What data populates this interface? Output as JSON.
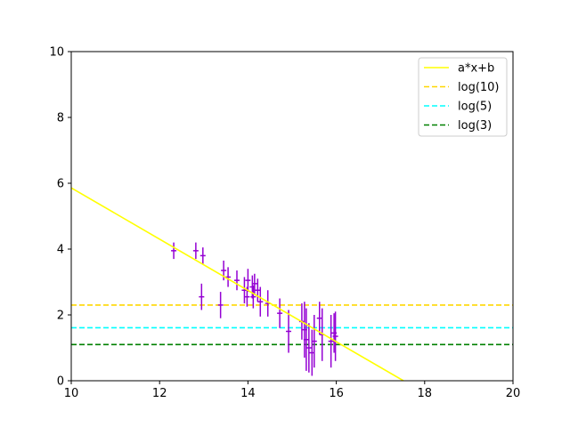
{
  "chart_data": {
    "type": "scatter",
    "title": "",
    "xlabel": "",
    "ylabel": "",
    "xlim": [
      10,
      20
    ],
    "ylim": [
      0,
      10
    ],
    "xticks": [
      "10",
      "12",
      "14",
      "16",
      "18",
      "20"
    ],
    "yticks": [
      "0",
      "2",
      "4",
      "6",
      "8",
      "10"
    ],
    "grid": false,
    "legend_position": "top-right",
    "colors": {
      "points": "#9400D3",
      "fit": "#FFFF00",
      "log10": "#FFD700",
      "log5": "#00FFFF",
      "log3": "#008000"
    },
    "legend": [
      {
        "label": "a*x+b",
        "style": "solid",
        "color": "#FFFF00"
      },
      {
        "label": "log(10)",
        "style": "dashed",
        "color": "#FFD700"
      },
      {
        "label": "log(5)",
        "style": "dashed",
        "color": "#00FFFF"
      },
      {
        "label": "log(3)",
        "style": "dashed",
        "color": "#008000"
      }
    ],
    "fit_line": {
      "x": [
        10,
        17.52
      ],
      "y": [
        5.86,
        0
      ]
    },
    "hlines": [
      {
        "label": "log(10)",
        "y": 2.3
      },
      {
        "label": "log(5)",
        "y": 1.61
      },
      {
        "label": "log(3)",
        "y": 1.1
      }
    ],
    "points": [
      {
        "x": 12.32,
        "y": 3.95,
        "err": 0.25
      },
      {
        "x": 12.82,
        "y": 3.95,
        "err": 0.25
      },
      {
        "x": 12.98,
        "y": 3.8,
        "err": 0.25
      },
      {
        "x": 12.95,
        "y": 2.55,
        "err": 0.4
      },
      {
        "x": 13.38,
        "y": 2.3,
        "err": 0.4
      },
      {
        "x": 13.45,
        "y": 3.35,
        "err": 0.3
      },
      {
        "x": 13.55,
        "y": 3.15,
        "err": 0.3
      },
      {
        "x": 13.75,
        "y": 3.05,
        "err": 0.3
      },
      {
        "x": 13.92,
        "y": 2.75,
        "err": 0.4
      },
      {
        "x": 13.98,
        "y": 2.55,
        "err": 0.3
      },
      {
        "x": 14.0,
        "y": 3.05,
        "err": 0.35
      },
      {
        "x": 14.1,
        "y": 2.85,
        "err": 0.35
      },
      {
        "x": 14.12,
        "y": 2.55,
        "err": 0.35
      },
      {
        "x": 14.15,
        "y": 2.95,
        "err": 0.3
      },
      {
        "x": 14.22,
        "y": 2.75,
        "err": 0.35
      },
      {
        "x": 14.28,
        "y": 2.4,
        "err": 0.45
      },
      {
        "x": 14.45,
        "y": 2.35,
        "err": 0.4
      },
      {
        "x": 14.72,
        "y": 2.05,
        "err": 0.45
      },
      {
        "x": 14.92,
        "y": 1.5,
        "err": 0.65
      },
      {
        "x": 15.22,
        "y": 1.8,
        "err": 0.55
      },
      {
        "x": 15.28,
        "y": 1.55,
        "err": 0.85
      },
      {
        "x": 15.32,
        "y": 1.25,
        "err": 0.95
      },
      {
        "x": 15.38,
        "y": 1.0,
        "err": 0.75
      },
      {
        "x": 15.45,
        "y": 0.85,
        "err": 0.7
      },
      {
        "x": 15.5,
        "y": 1.2,
        "err": 0.8
      },
      {
        "x": 15.62,
        "y": 1.9,
        "err": 0.5
      },
      {
        "x": 15.68,
        "y": 1.4,
        "err": 0.8
      },
      {
        "x": 15.88,
        "y": 1.2,
        "err": 0.8
      },
      {
        "x": 15.95,
        "y": 1.45,
        "err": 0.6
      },
      {
        "x": 15.98,
        "y": 1.35,
        "err": 0.75
      }
    ]
  }
}
